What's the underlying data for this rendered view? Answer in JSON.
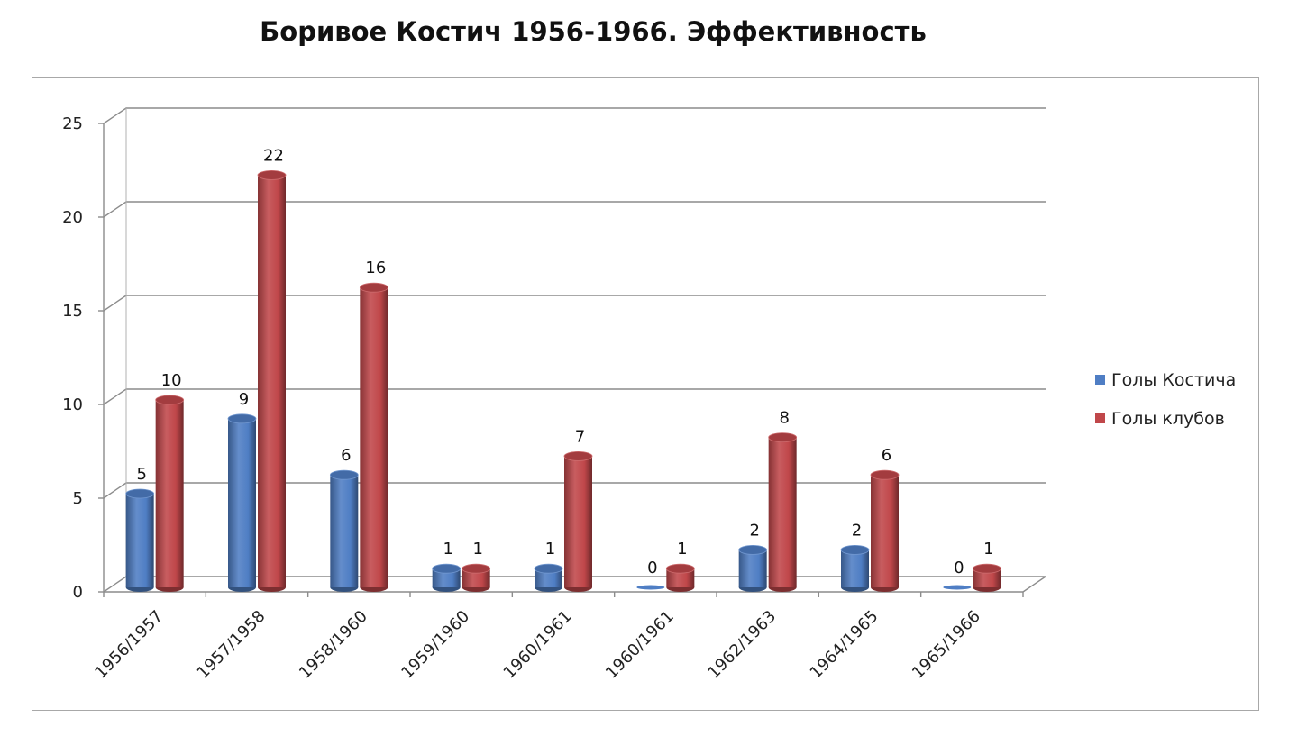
{
  "title": "Боривое Костич 1956-1966. Эффективность",
  "chart_data": {
    "type": "bar",
    "title": "Боривое Костич 1956-1966. Эффективность",
    "categories": [
      "1956/1957",
      "1957/1958",
      "1958/1960",
      "1959/1960",
      "1960/1961",
      "1960/1961",
      "1962/1963",
      "1964/1965",
      "1965/1966"
    ],
    "series": [
      {
        "name": "Голы Костича",
        "color": "#4f7ec4",
        "values": [
          5,
          9,
          6,
          1,
          1,
          0,
          2,
          2,
          0
        ]
      },
      {
        "name": "Голы клубов",
        "color": "#c0474a",
        "values": [
          10,
          22,
          16,
          1,
          7,
          1,
          8,
          6,
          1
        ]
      }
    ],
    "yticks": [
      "0",
      "5",
      "10",
      "15",
      "20",
      "25"
    ],
    "ylim": [
      0,
      25
    ],
    "xlabel": "",
    "ylabel": "",
    "grid": true,
    "legend": "right"
  }
}
